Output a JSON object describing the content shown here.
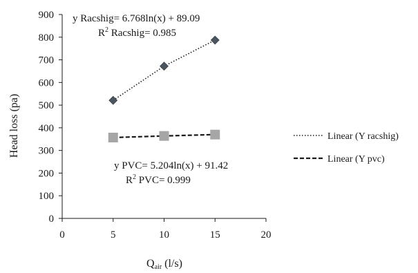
{
  "chart_data": {
    "type": "scatter",
    "xlabel_main": "Q",
    "xlabel_sub": "air",
    "xlabel_unit": " (l/s)",
    "ylabel": "Head loss (pa)",
    "xlim": [
      0,
      20
    ],
    "ylim": [
      0,
      900
    ],
    "x_ticks": [
      0,
      5,
      10,
      15,
      20
    ],
    "y_ticks": [
      0,
      100,
      200,
      300,
      400,
      500,
      600,
      700,
      800,
      900
    ],
    "grid": false,
    "legend_position": "right",
    "series": [
      {
        "key": "racshig",
        "marker": "diamond",
        "color": "#4a5560",
        "x": [
          5,
          10,
          15
        ],
        "y": [
          521,
          672,
          787
        ],
        "trendline": {
          "kind": "log",
          "a": 6.768,
          "b": 89.09,
          "style": "dotted",
          "legend": "Linear (Y racshig)",
          "equation": "y  Racshig= 6.768ln(x) + 89.09",
          "r2_prefix": "R",
          "r2_sup": "2",
          "r2_text": "  Racshig= 0.985"
        }
      },
      {
        "key": "pvc",
        "marker": "square",
        "color": "#a6a6a6",
        "x": [
          5,
          10,
          15
        ],
        "y": [
          357,
          364,
          370
        ],
        "trendline": {
          "kind": "log",
          "a": 5.204,
          "b": 91.42,
          "style": "dashed",
          "legend": "Linear (Y pvc)",
          "equation": "y PVC= 5.204ln(x) + 91.42",
          "r2_prefix": "R",
          "r2_sup": "2",
          "r2_text": " PVC= 0.999"
        }
      }
    ]
  }
}
